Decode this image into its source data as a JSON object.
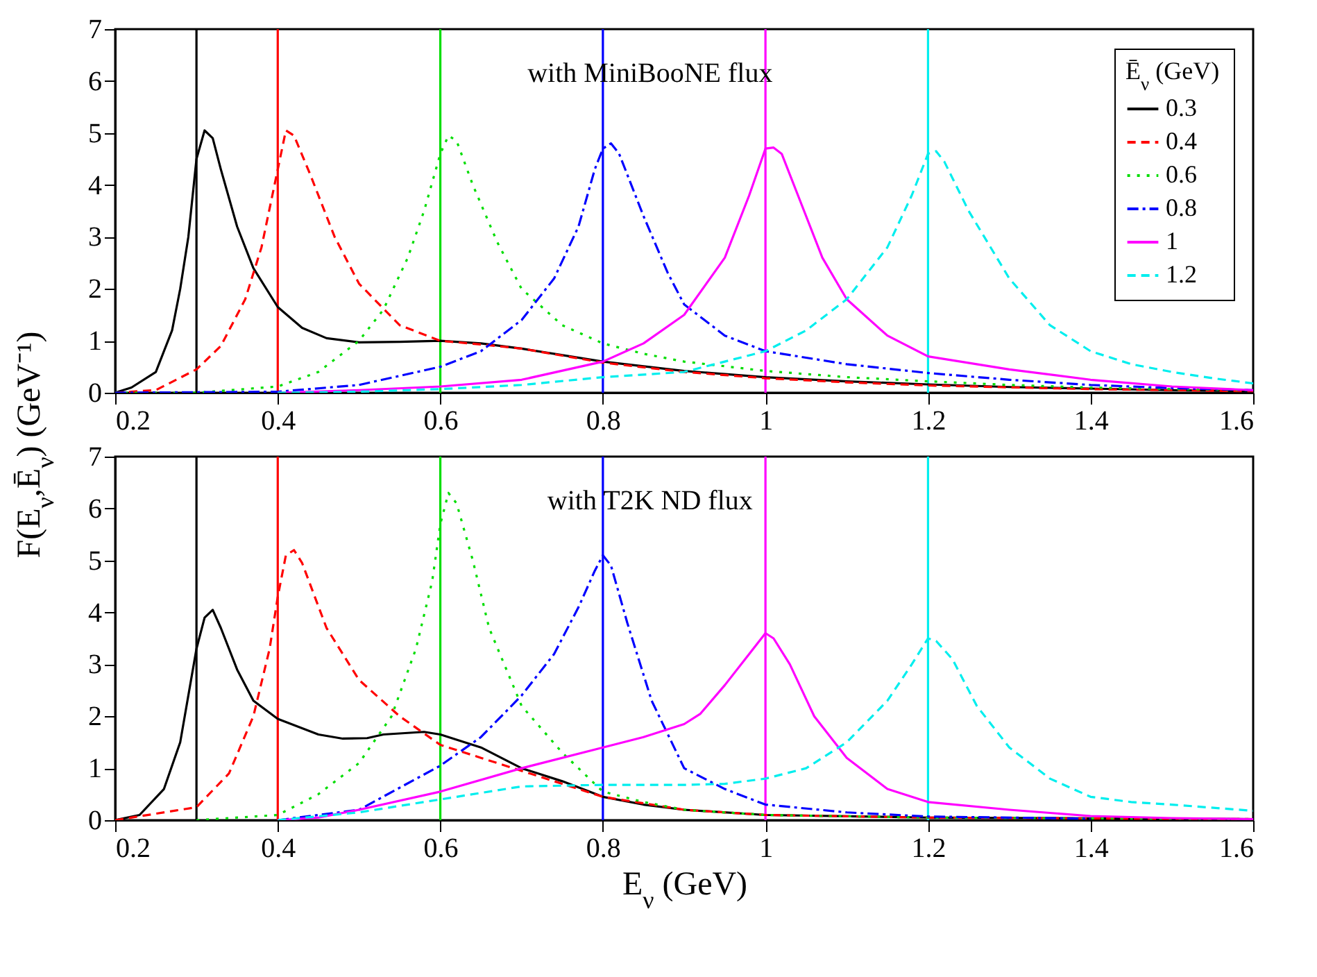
{
  "chart_data": [
    {
      "type": "line",
      "ylabel": "F(E$_{ν}$,Ē$_{ν}$) (GeV⁻¹)",
      "legend_title": "Ē$_{ν}$ (GeV)",
      "legend": "top right",
      "annotations": [
        "with MiniBooNE flux"
      ],
      "xlim": [
        0.2,
        1.6
      ],
      "xticks": [
        0.2,
        0.4,
        0.6,
        0.8,
        1,
        1.2,
        1.4,
        1.6
      ],
      "ylim": [
        0,
        7
      ],
      "yticks": [
        0,
        1,
        2,
        3,
        4,
        5,
        6,
        7
      ],
      "grid": false,
      "ref_lines": [
        {
          "axis": "x",
          "value": 0.3,
          "color": "#000000"
        },
        {
          "axis": "x",
          "value": 0.4,
          "color": "#ff0000"
        },
        {
          "axis": "x",
          "value": 0.6,
          "color": "#00dd00"
        },
        {
          "axis": "x",
          "value": 0.8,
          "color": "#0000ff"
        },
        {
          "axis": "x",
          "value": 1,
          "color": "#ff00ff"
        },
        {
          "axis": "x",
          "value": 1.2,
          "color": "#00eeee"
        }
      ],
      "series": [
        {
          "name": "0.3",
          "color": "#000000",
          "line_style": "solid",
          "x": [
            0.2,
            0.22,
            0.25,
            0.27,
            0.28,
            0.29,
            0.3,
            0.31,
            0.32,
            0.33,
            0.35,
            0.37,
            0.4,
            0.43,
            0.46,
            0.5,
            0.55,
            0.6,
            0.65,
            0.7,
            0.8,
            0.9,
            1.0,
            1.1,
            1.2,
            1.3,
            1.4,
            1.5,
            1.6
          ],
          "values": [
            0,
            0.1,
            0.4,
            1.2,
            2,
            3,
            4.5,
            5.05,
            4.9,
            4.3,
            3.2,
            2.4,
            1.65,
            1.25,
            1.05,
            0.97,
            0.98,
            1.0,
            0.95,
            0.85,
            0.6,
            0.42,
            0.3,
            0.22,
            0.16,
            0.11,
            0.08,
            0.05,
            0.03
          ]
        },
        {
          "name": "0.4",
          "color": "#ff0000",
          "line_style": "dashed",
          "x": [
            0.2,
            0.25,
            0.3,
            0.33,
            0.36,
            0.38,
            0.4,
            0.41,
            0.42,
            0.44,
            0.47,
            0.5,
            0.55,
            0.6,
            0.65,
            0.7,
            0.8,
            0.9,
            1.0,
            1.1,
            1.2,
            1.4,
            1.6
          ],
          "values": [
            0,
            0.05,
            0.45,
            0.9,
            1.8,
            2.8,
            4.3,
            5.05,
            4.95,
            4.2,
            3.0,
            2.1,
            1.3,
            1.0,
            0.93,
            0.85,
            0.58,
            0.4,
            0.28,
            0.2,
            0.14,
            0.07,
            0.03
          ]
        },
        {
          "name": "0.6",
          "color": "#00dd00",
          "line_style": "dotted",
          "x": [
            0.2,
            0.3,
            0.4,
            0.45,
            0.5,
            0.53,
            0.56,
            0.58,
            0.6,
            0.61,
            0.62,
            0.64,
            0.67,
            0.7,
            0.75,
            0.8,
            0.85,
            0.9,
            1.0,
            1.1,
            1.2,
            1.3,
            1.4,
            1.5,
            1.6
          ],
          "values": [
            0,
            0,
            0.12,
            0.4,
            1.0,
            1.6,
            2.6,
            3.5,
            4.6,
            4.95,
            4.85,
            4.0,
            2.9,
            2.0,
            1.3,
            0.95,
            0.75,
            0.6,
            0.42,
            0.3,
            0.22,
            0.15,
            0.1,
            0.07,
            0.05
          ]
        },
        {
          "name": "0.8",
          "color": "#0000ff",
          "line_style": "dashdot",
          "x": [
            0.2,
            0.4,
            0.5,
            0.6,
            0.65,
            0.7,
            0.74,
            0.77,
            0.79,
            0.8,
            0.81,
            0.82,
            0.85,
            0.88,
            0.9,
            0.95,
            1.0,
            1.1,
            1.2,
            1.3,
            1.4,
            1.5,
            1.6
          ],
          "values": [
            0,
            0.02,
            0.15,
            0.5,
            0.8,
            1.4,
            2.2,
            3.2,
            4.3,
            4.7,
            4.8,
            4.6,
            3.4,
            2.3,
            1.7,
            1.1,
            0.8,
            0.55,
            0.38,
            0.25,
            0.15,
            0.09,
            0.05
          ]
        },
        {
          "name": "1",
          "color": "#ff00ff",
          "line_style": "solid",
          "x": [
            0.4,
            0.5,
            0.6,
            0.7,
            0.8,
            0.85,
            0.9,
            0.95,
            0.98,
            1.0,
            1.01,
            1.02,
            1.04,
            1.07,
            1.1,
            1.15,
            1.2,
            1.3,
            1.4,
            1.5,
            1.6
          ],
          "values": [
            0,
            0.05,
            0.12,
            0.25,
            0.6,
            0.95,
            1.5,
            2.6,
            3.8,
            4.7,
            4.72,
            4.6,
            3.8,
            2.6,
            1.8,
            1.1,
            0.7,
            0.45,
            0.25,
            0.12,
            0.05
          ]
        },
        {
          "name": "1.2",
          "color": "#00eeee",
          "line_style": "dashed",
          "x": [
            0.4,
            0.5,
            0.6,
            0.7,
            0.8,
            0.9,
            1.0,
            1.05,
            1.1,
            1.15,
            1.18,
            1.2,
            1.21,
            1.22,
            1.25,
            1.3,
            1.35,
            1.4,
            1.45,
            1.5,
            1.55,
            1.6
          ],
          "values": [
            0,
            0.02,
            0.07,
            0.15,
            0.3,
            0.4,
            0.8,
            1.2,
            1.8,
            2.8,
            3.8,
            4.6,
            4.65,
            4.45,
            3.5,
            2.2,
            1.3,
            0.8,
            0.55,
            0.4,
            0.28,
            0.18
          ]
        }
      ]
    },
    {
      "type": "line",
      "xlabel": "E$_{ν}$ (GeV)",
      "annotations": [
        "with T2K ND flux"
      ],
      "xlim": [
        0.2,
        1.6
      ],
      "xticks": [
        0.2,
        0.4,
        0.6,
        0.8,
        1,
        1.2,
        1.4,
        1.6
      ],
      "ylim": [
        0,
        7
      ],
      "yticks": [
        0,
        1,
        2,
        3,
        4,
        5,
        6,
        7
      ],
      "grid": false,
      "ref_lines": [
        {
          "axis": "x",
          "value": 0.3,
          "color": "#000000"
        },
        {
          "axis": "x",
          "value": 0.4,
          "color": "#ff0000"
        },
        {
          "axis": "x",
          "value": 0.6,
          "color": "#00dd00"
        },
        {
          "axis": "x",
          "value": 0.8,
          "color": "#0000ff"
        },
        {
          "axis": "x",
          "value": 1,
          "color": "#ff00ff"
        },
        {
          "axis": "x",
          "value": 1.2,
          "color": "#00eeee"
        }
      ],
      "series": [
        {
          "color": "#000000",
          "line_style": "solid",
          "x": [
            0.2,
            0.23,
            0.26,
            0.28,
            0.3,
            0.31,
            0.32,
            0.33,
            0.35,
            0.37,
            0.4,
            0.45,
            0.48,
            0.51,
            0.53,
            0.58,
            0.6,
            0.65,
            0.7,
            0.75,
            0.8,
            0.85,
            0.9,
            1.0,
            1.2,
            1.6
          ],
          "values": [
            0,
            0.1,
            0.6,
            1.5,
            3.3,
            3.9,
            4.05,
            3.7,
            2.9,
            2.3,
            1.95,
            1.65,
            1.57,
            1.58,
            1.65,
            1.7,
            1.65,
            1.4,
            1.0,
            0.75,
            0.45,
            0.3,
            0.2,
            0.1,
            0.05,
            0.02
          ]
        },
        {
          "color": "#ff0000",
          "line_style": "dashed",
          "x": [
            0.2,
            0.3,
            0.34,
            0.37,
            0.39,
            0.4,
            0.41,
            0.42,
            0.43,
            0.46,
            0.5,
            0.55,
            0.6,
            0.65,
            0.7,
            0.75,
            0.8,
            0.9,
            1.0,
            1.2,
            1.6
          ],
          "values": [
            0,
            0.25,
            0.9,
            2.0,
            3.3,
            4.3,
            5.1,
            5.2,
            4.95,
            3.7,
            2.7,
            2.0,
            1.45,
            1.2,
            0.95,
            0.7,
            0.45,
            0.2,
            0.1,
            0.05,
            0.02
          ]
        },
        {
          "color": "#00dd00",
          "line_style": "dotted",
          "x": [
            0.3,
            0.4,
            0.45,
            0.5,
            0.54,
            0.57,
            0.59,
            0.6,
            0.61,
            0.62,
            0.64,
            0.66,
            0.7,
            0.75,
            0.8,
            0.85,
            0.9,
            1.0,
            1.2,
            1.6
          ],
          "values": [
            0,
            0.1,
            0.5,
            1.1,
            2.0,
            3.3,
            4.6,
            5.7,
            6.3,
            6.1,
            5.0,
            3.7,
            2.2,
            1.3,
            0.55,
            0.35,
            0.2,
            0.1,
            0.05,
            0.02
          ]
        },
        {
          "color": "#0000ff",
          "line_style": "dashdot",
          "x": [
            0.4,
            0.5,
            0.6,
            0.65,
            0.7,
            0.74,
            0.77,
            0.79,
            0.8,
            0.81,
            0.83,
            0.86,
            0.9,
            0.95,
            1.0,
            1.1,
            1.2,
            1.4
          ],
          "values": [
            0,
            0.2,
            1.05,
            1.6,
            2.4,
            3.2,
            4.1,
            4.8,
            5.1,
            4.9,
            3.8,
            2.3,
            1.0,
            0.6,
            0.3,
            0.15,
            0.07,
            0.03
          ]
        },
        {
          "color": "#ff00ff",
          "line_style": "solid",
          "x": [
            0.4,
            0.45,
            0.5,
            0.6,
            0.7,
            0.8,
            0.85,
            0.9,
            0.92,
            0.95,
            0.98,
            1.0,
            1.01,
            1.03,
            1.06,
            1.1,
            1.15,
            1.2,
            1.3,
            1.4,
            1.5,
            1.6
          ],
          "values": [
            0,
            0.05,
            0.2,
            0.55,
            1.0,
            1.4,
            1.6,
            1.85,
            2.05,
            2.6,
            3.2,
            3.6,
            3.5,
            3.0,
            2.0,
            1.2,
            0.6,
            0.35,
            0.2,
            0.08,
            0.04,
            0.02
          ]
        },
        {
          "color": "#00eeee",
          "line_style": "dashed",
          "x": [
            0.4,
            0.5,
            0.6,
            0.7,
            0.8,
            0.9,
            0.95,
            1.0,
            1.05,
            1.1,
            1.15,
            1.18,
            1.2,
            1.21,
            1.23,
            1.26,
            1.3,
            1.35,
            1.4,
            1.45,
            1.5,
            1.6
          ],
          "values": [
            0,
            0.15,
            0.4,
            0.65,
            0.68,
            0.68,
            0.7,
            0.8,
            1.0,
            1.5,
            2.3,
            3.0,
            3.5,
            3.45,
            3.1,
            2.2,
            1.4,
            0.8,
            0.45,
            0.35,
            0.3,
            0.18
          ]
        }
      ]
    }
  ]
}
